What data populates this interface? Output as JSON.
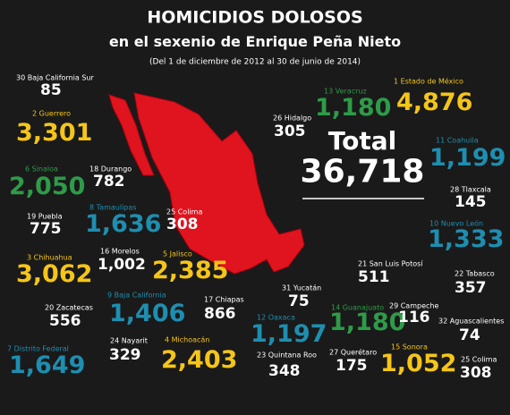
{
  "header": {
    "title": "HOMICIDIOS DOLOSOS",
    "subtitle": "en el sexenio de Enrique Peña Nieto",
    "note": "(Del 1 de diciembre de 2012 al 30 de junio de 2014)"
  },
  "total": {
    "label": "Total",
    "value": "36,718"
  },
  "items": [
    {
      "label": "30 Baja California Sur",
      "value": "85",
      "color": "#ffffff"
    },
    {
      "label": "2 Guerrero",
      "value": "3,301",
      "color": "#f5c518"
    },
    {
      "label": "6 Sinaloa",
      "value": "2,050",
      "color": "#2e9b48"
    },
    {
      "label": "18 Durango",
      "value": "782",
      "color": "#ffffff"
    },
    {
      "label": "19 Puebla",
      "value": "775",
      "color": "#ffffff"
    },
    {
      "label": "8 Tamaulipas",
      "value": "1,636",
      "color": "#1e8eb0"
    },
    {
      "label": "25 Colima",
      "value": "308",
      "color": "#ffffff"
    },
    {
      "label": "3 Chihuahua",
      "value": "3,062",
      "color": "#f5c518"
    },
    {
      "label": "16 Morelos",
      "value": "1,002",
      "color": "#ffffff"
    },
    {
      "label": "5 Jalisco",
      "value": "2,385",
      "color": "#f5c518"
    },
    {
      "label": "20 Zacatecas",
      "value": "556",
      "color": "#ffffff"
    },
    {
      "label": "9 Baja California",
      "value": "1,406",
      "color": "#1e8eb0"
    },
    {
      "label": "17 Chiapas",
      "value": "866",
      "color": "#ffffff"
    },
    {
      "label": "7 Distrito Federal",
      "value": "1,649",
      "color": "#1e8eb0"
    },
    {
      "label": "24 Nayarit",
      "value": "329",
      "color": "#ffffff"
    },
    {
      "label": "4 Michoacán",
      "value": "2,403",
      "color": "#f5c518"
    },
    {
      "label": "13 Veracruz",
      "value": "1,180",
      "color": "#2e9b48"
    },
    {
      "label": "1 Estado de México",
      "value": "4,876",
      "color": "#f5c518"
    },
    {
      "label": "26 Hidalgo",
      "value": "305",
      "color": "#ffffff"
    },
    {
      "label": "11 Coahuila",
      "value": "1,199",
      "color": "#1e8eb0"
    },
    {
      "label": "28 Tlaxcala",
      "value": "145",
      "color": "#ffffff"
    },
    {
      "label": "10 Nuevo León",
      "value": "1,333",
      "color": "#1e8eb0"
    },
    {
      "label": "21 San Luis Potosí",
      "value": "511",
      "color": "#ffffff"
    },
    {
      "label": "22 Tabasco",
      "value": "357",
      "color": "#ffffff"
    },
    {
      "label": "31 Yucatán",
      "value": "75",
      "color": "#ffffff"
    },
    {
      "label": "12 Oaxaca",
      "value": "1,197",
      "color": "#1e8eb0"
    },
    {
      "label": "14 Guanajuato",
      "value": "1,180",
      "color": "#2e9b48"
    },
    {
      "label": "29 Campeche",
      "value": "116",
      "color": "#ffffff"
    },
    {
      "label": "32 Aguascalientes",
      "value": "74",
      "color": "#ffffff"
    },
    {
      "label": "23 Quintana Roo",
      "value": "348",
      "color": "#ffffff"
    },
    {
      "label": "27 Querétaro",
      "value": "175",
      "color": "#ffffff"
    },
    {
      "label": "15 Sonora",
      "value": "1,052",
      "color": "#f5c518"
    },
    {
      "label": "25 Colima",
      "value": "308",
      "color": "#ffffff"
    }
  ]
}
